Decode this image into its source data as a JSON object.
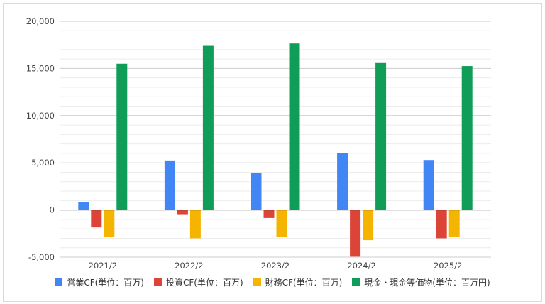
{
  "chart_data": {
    "type": "bar",
    "categories": [
      "2021/2",
      "2022/2",
      "2023/2",
      "2024/2",
      "2025/2"
    ],
    "series": [
      {
        "name": "営業CF(単位：百万)",
        "color": "#4285f4",
        "values": [
          850,
          5250,
          3950,
          6050,
          5300
        ]
      },
      {
        "name": "投資CF(単位：百万)",
        "color": "#db4437",
        "values": [
          -1850,
          -450,
          -850,
          -4950,
          -3000
        ]
      },
      {
        "name": "財務CF(単位：百万)",
        "color": "#f4b400",
        "values": [
          -2850,
          -3000,
          -2850,
          -3200,
          -2850
        ]
      },
      {
        "name": "現金・現金等価物(単位：百万円)",
        "color": "#0f9d58",
        "values": [
          15500,
          17400,
          17650,
          15650,
          15250
        ]
      }
    ],
    "yticks": [
      "20,000",
      "15,000",
      "10,000",
      "5,000",
      "0",
      "-5,000"
    ],
    "ylim": [
      -5000,
      20000
    ],
    "minor_gridlines": true,
    "legend_position": "bottom"
  }
}
